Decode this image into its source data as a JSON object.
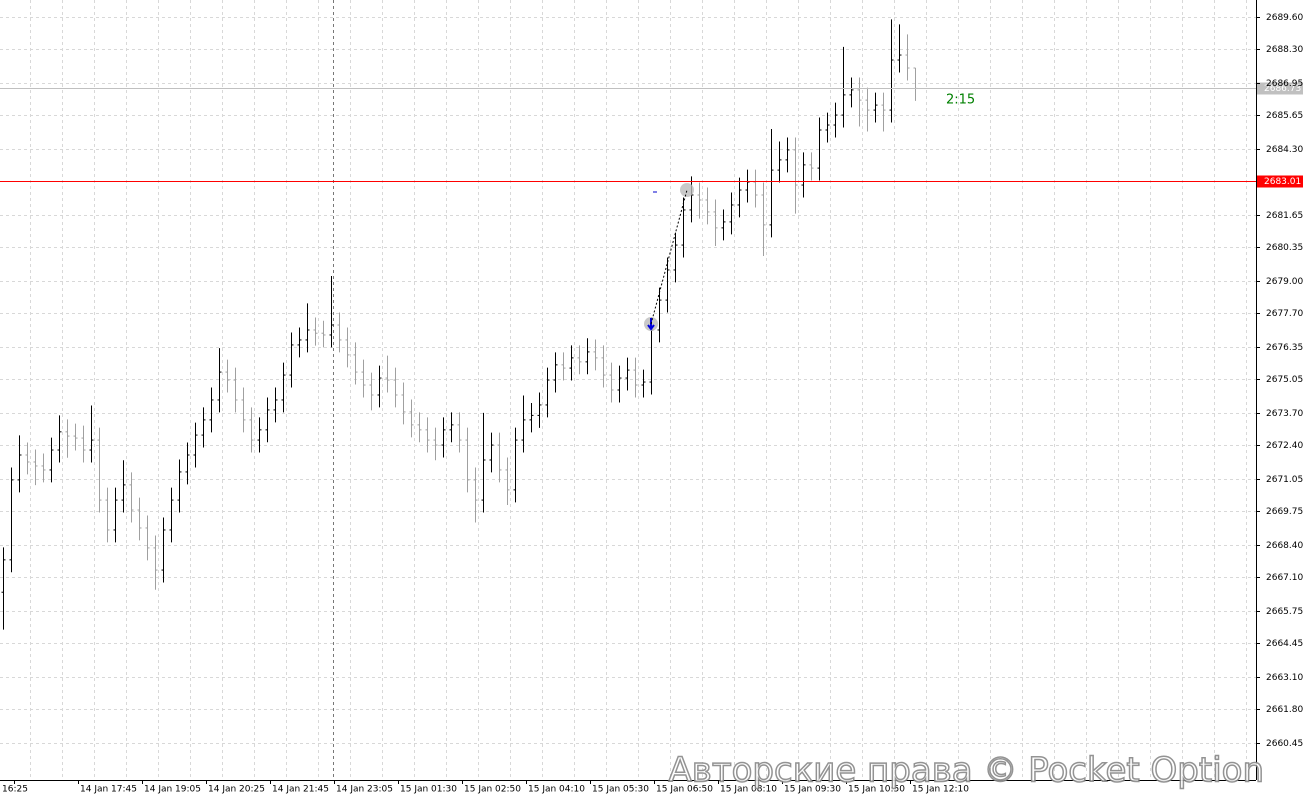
{
  "chart_data": {
    "type": "ohlc",
    "ylim": [
      2658.96,
      2690.28
    ],
    "yticks": [
      {
        "value": 2689.6,
        "label": "2689.60"
      },
      {
        "value": 2688.3,
        "label": "2688.30"
      },
      2686.95,
      2685.65,
      {
        "value": 2684.3,
        "label": "2684.30"
      },
      2681.65,
      2680.35,
      {
        "value": 2679,
        "label": "2679.00"
      },
      {
        "value": 2677.7,
        "label": "2677.70"
      },
      2676.35,
      2675.05,
      {
        "value": 2673.7,
        "label": "2673.70"
      },
      {
        "value": 2672.4,
        "label": "2672.40"
      },
      2671.05,
      2669.75,
      {
        "value": 2668.4,
        "label": "2668.40"
      },
      {
        "value": 2667.1,
        "label": "2667.10"
      },
      2665.75,
      2664.45,
      {
        "value": 2663.1,
        "label": "2663.10"
      },
      {
        "value": 2661.8,
        "label": "2661.80"
      },
      2660.45
    ],
    "grid": true,
    "x_labels": [
      "16:25",
      "14 Jan 17:45",
      "14 Jan 19:05",
      "14 Jan 20:25",
      "14 Jan 21:45",
      "14 Jan 23:05",
      "15 Jan 01:30",
      "15 Jan 02:50",
      "15 Jan 04:10",
      "15 Jan 05:30",
      "15 Jan 06:50",
      "15 Jan 08:10",
      "15 Jan 09:30",
      "15 Jan 10:50",
      "15 Jan 12:10"
    ],
    "up_color": "#000000",
    "down_color": "#a0a0a0",
    "open": [
      2666.5,
      2667.8,
      2671.01,
      2672.01,
      2671.73,
      2671.57,
      2671.41,
      2672.21,
      2672.94,
      2672.77,
      2672.69,
      2672.21,
      2672.61,
      2670.2,
      2669.0,
      2670.2,
      2670.81,
      2669.8,
      2669.08,
      2668.28,
      2667.39,
      2669.0,
      2670.2,
      2671.33,
      2672.01,
      2672.81,
      2673.42,
      2674.22,
      2675.34,
      2675.02,
      2674.22,
      2673.42,
      2672.61,
      2673.02,
      2673.82,
      2674.22,
      2675.22,
      2676.43,
      2676.63,
      2677.03,
      2676.9,
      2676.83,
      2677.23,
      2676.63,
      2676.03,
      2675.34,
      2674.82,
      2674.42,
      2675.1,
      2675.02,
      2674.42,
      2673.74,
      2673.22,
      2673.02,
      2672.61,
      2672.41,
      2673.02,
      2673.22,
      2672.61,
      2671.01,
      2670.2,
      2671.81,
      2672.41,
      2671.41,
      2670.61,
      2672.61,
      2673.42,
      2673.6,
      2674.02,
      2675.02,
      2675.63,
      2675.5,
      2675.91,
      2675.75,
      2676.15,
      2675.91,
      2675.22,
      2674.62,
      2675.1,
      2675.42,
      2674.82,
      2674.94,
      2677.03,
      2678.23,
      2679.44,
      2680.44,
      2681.85,
      2682.45,
      2682.25,
      2681.77,
      2681.13,
      2681.37,
      2682.05,
      2682.65,
      2682.97,
      2682.45,
      2681.25,
      2683.45,
      2683.86,
      2684.26,
      2682.85,
      2683.66,
      2683.53,
      2685.06,
      2685.26,
      2685.66,
      2686.47,
      2686.67,
      2686.26,
      2685.86,
      2686.06,
      2685.86,
      2687.87,
      2688.07,
      2687.55
    ],
    "high": [
      2668.3,
      2671.51,
      2672.8,
      2672.51,
      2672.23,
      2672.07,
      2672.71,
      2673.6,
      2673.44,
      2673.27,
      2673.19,
      2674.0,
      2673.11,
      2670.7,
      2670.7,
      2671.8,
      2671.31,
      2670.3,
      2669.58,
      2668.78,
      2669.5,
      2670.7,
      2671.83,
      2672.51,
      2673.31,
      2673.92,
      2674.72,
      2676.3,
      2675.84,
      2675.52,
      2674.72,
      2673.92,
      2673.52,
      2674.32,
      2674.72,
      2675.72,
      2676.93,
      2677.13,
      2678.1,
      2677.53,
      2677.4,
      2679.2,
      2677.73,
      2677.13,
      2676.53,
      2675.84,
      2675.32,
      2675.6,
      2676.0,
      2675.52,
      2674.92,
      2674.24,
      2673.72,
      2673.52,
      2673.11,
      2673.52,
      2673.72,
      2673.72,
      2673.11,
      2671.51,
      2673.7,
      2672.91,
      2672.91,
      2671.91,
      2673.11,
      2674.4,
      2674.1,
      2674.52,
      2675.52,
      2676.13,
      2676.13,
      2676.41,
      2676.41,
      2676.7,
      2676.65,
      2676.41,
      2675.72,
      2675.6,
      2675.92,
      2675.92,
      2675.44,
      2677.53,
      2678.73,
      2679.94,
      2680.94,
      2682.35,
      2683.2,
      2682.95,
      2682.75,
      2682.27,
      2681.87,
      2682.55,
      2683.15,
      2683.47,
      2683.47,
      2682.95,
      2685.1,
      2684.6,
      2684.76,
      2684.76,
      2684.16,
      2684.16,
      2685.56,
      2685.76,
      2686.16,
      2688.4,
      2687.17,
      2687.17,
      2686.76,
      2686.56,
      2686.56,
      2689.5,
      2689.3,
      2688.9,
      2687.55
    ],
    "low": [
      2665.0,
      2667.3,
      2670.51,
      2671.23,
      2670.8,
      2670.91,
      2670.91,
      2671.71,
      2671.9,
      2672.19,
      2671.71,
      2671.71,
      2669.7,
      2668.5,
      2668.5,
      2669.7,
      2669.3,
      2668.58,
      2667.78,
      2666.6,
      2666.89,
      2668.5,
      2669.7,
      2670.83,
      2671.51,
      2672.31,
      2672.92,
      2673.72,
      2674.52,
      2673.72,
      2672.92,
      2672.11,
      2672.11,
      2672.52,
      2673.32,
      2673.72,
      2674.72,
      2675.93,
      2676.13,
      2676.4,
      2676.33,
      2676.33,
      2676.13,
      2675.53,
      2674.84,
      2674.32,
      2673.8,
      2673.92,
      2674.52,
      2673.92,
      2673.24,
      2672.72,
      2672.52,
      2672.11,
      2671.8,
      2671.91,
      2672.52,
      2672.11,
      2670.51,
      2669.3,
      2669.7,
      2671.31,
      2670.91,
      2670.0,
      2670.11,
      2672.11,
      2672.92,
      2673.1,
      2673.52,
      2674.52,
      2675.0,
      2675.0,
      2675.25,
      2675.25,
      2675.41,
      2674.72,
      2674.12,
      2674.12,
      2674.6,
      2674.32,
      2674.32,
      2674.44,
      2676.53,
      2677.73,
      2678.94,
      2679.94,
      2681.35,
      2681.5,
      2681.27,
      2680.4,
      2680.63,
      2680.87,
      2681.55,
      2682.15,
      2681.95,
      2680.0,
      2680.75,
      2682.95,
      2683.36,
      2681.7,
      2682.35,
      2683.03,
      2683.03,
      2684.56,
      2684.76,
      2685.16,
      2685.97,
      2685.2,
      2685.0,
      2685.36,
      2685.0,
      2685.36,
      2687.37,
      2687.05,
      2686.23
    ],
    "close": [
      2667.8,
      2671.01,
      2672.01,
      2671.73,
      2671.57,
      2671.41,
      2672.21,
      2672.94,
      2672.77,
      2672.69,
      2672.21,
      2672.61,
      2670.2,
      2669.0,
      2670.2,
      2670.81,
      2669.8,
      2669.08,
      2668.28,
      2667.39,
      2669.0,
      2670.2,
      2671.33,
      2672.01,
      2672.81,
      2673.42,
      2674.22,
      2675.34,
      2675.02,
      2674.22,
      2673.42,
      2672.61,
      2673.02,
      2673.82,
      2674.22,
      2675.22,
      2676.43,
      2676.63,
      2677.03,
      2676.9,
      2676.83,
      2677.23,
      2676.63,
      2676.03,
      2675.34,
      2674.82,
      2674.42,
      2675.1,
      2675.02,
      2674.42,
      2673.74,
      2673.22,
      2673.02,
      2672.61,
      2672.41,
      2673.02,
      2673.22,
      2672.61,
      2671.01,
      2670.2,
      2671.81,
      2672.41,
      2671.41,
      2670.61,
      2672.61,
      2673.42,
      2673.6,
      2674.02,
      2675.02,
      2675.63,
      2675.5,
      2675.91,
      2675.75,
      2676.15,
      2675.91,
      2675.22,
      2674.62,
      2675.1,
      2675.42,
      2674.82,
      2674.94,
      2677.03,
      2678.23,
      2679.44,
      2680.44,
      2681.85,
      2682.45,
      2682.25,
      2681.77,
      2681.13,
      2681.37,
      2682.05,
      2682.65,
      2682.97,
      2682.45,
      2681.25,
      2683.45,
      2683.86,
      2684.26,
      2682.85,
      2683.66,
      2683.53,
      2685.06,
      2685.26,
      2685.66,
      2686.47,
      2686.67,
      2686.26,
      2685.86,
      2686.06,
      2685.86,
      2687.87,
      2688.07,
      2687.55,
      2686.73
    ],
    "price_lines": [
      {
        "value": 2686.73,
        "color": "#c0c0c0"
      },
      {
        "value": 2683.01,
        "color": "#ff0000"
      }
    ],
    "timer": "2:15",
    "watermark": "Авторские права © Pocket Option"
  }
}
